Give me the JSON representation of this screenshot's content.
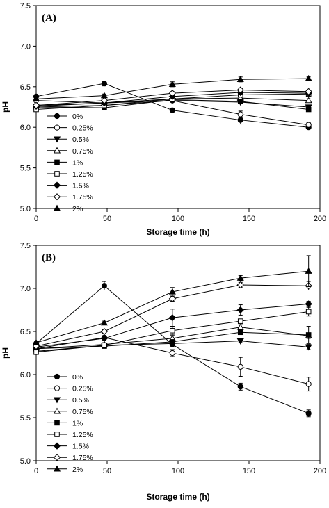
{
  "chart_data": [
    {
      "type": "line",
      "panel_label": "(A)",
      "xlabel": "Storage time (h)",
      "ylabel": "pH",
      "xlim": [
        0,
        200
      ],
      "ylim": [
        5.0,
        7.5
      ],
      "xticks": [
        0,
        50,
        100,
        150,
        200
      ],
      "yticks": [
        5.0,
        5.5,
        6.0,
        6.5,
        7.0,
        7.5
      ],
      "x": [
        0,
        48,
        96,
        144,
        192
      ],
      "legend_position": "bottom-left",
      "series": [
        {
          "name": "0%",
          "marker": "circle-filled",
          "values": [
            6.38,
            6.54,
            6.21,
            6.09,
            6.0
          ],
          "errors": [
            0.02,
            0.03,
            0.02,
            0.05,
            0.02
          ]
        },
        {
          "name": "0.25%",
          "marker": "circle-open",
          "values": [
            6.33,
            6.3,
            6.33,
            6.16,
            6.03
          ],
          "errors": [
            0.02,
            0.02,
            0.02,
            0.04,
            0.03
          ]
        },
        {
          "name": "0.5%",
          "marker": "triangle-down-filled",
          "values": [
            6.25,
            6.27,
            6.33,
            6.31,
            6.25
          ],
          "errors": [
            0.02,
            0.02,
            0.02,
            0.02,
            0.02
          ]
        },
        {
          "name": "0.75%",
          "marker": "triangle-up-open",
          "values": [
            6.27,
            6.3,
            6.35,
            6.36,
            6.33
          ],
          "errors": [
            0.02,
            0.02,
            0.02,
            0.02,
            0.02
          ]
        },
        {
          "name": "1%",
          "marker": "square-filled",
          "values": [
            6.25,
            6.24,
            6.34,
            6.32,
            6.22
          ],
          "errors": [
            0.02,
            0.02,
            0.02,
            0.02,
            0.02
          ]
        },
        {
          "name": "1.25%",
          "marker": "square-open",
          "values": [
            6.22,
            6.27,
            6.35,
            6.4,
            6.41
          ],
          "errors": [
            0.02,
            0.02,
            0.02,
            0.02,
            0.02
          ]
        },
        {
          "name": "1.5%",
          "marker": "diamond-filled",
          "values": [
            6.26,
            6.3,
            6.38,
            6.43,
            6.42
          ],
          "errors": [
            0.02,
            0.02,
            0.02,
            0.02,
            0.02
          ]
        },
        {
          "name": "1.75%",
          "marker": "diamond-open",
          "values": [
            6.27,
            6.33,
            6.42,
            6.46,
            6.44
          ],
          "errors": [
            0.02,
            0.02,
            0.02,
            0.02,
            0.02
          ]
        },
        {
          "name": "2%",
          "marker": "triangle-up-filled",
          "values": [
            6.35,
            6.39,
            6.53,
            6.59,
            6.6
          ],
          "errors": [
            0.02,
            0.02,
            0.03,
            0.03,
            0.02
          ]
        }
      ]
    },
    {
      "type": "line",
      "panel_label": "(B)",
      "xlabel": "Storage time (h)",
      "ylabel": "pH",
      "xlim": [
        0,
        200
      ],
      "ylim": [
        5.0,
        7.5
      ],
      "xticks": [
        0,
        50,
        100,
        150,
        200
      ],
      "yticks": [
        5.0,
        5.5,
        6.0,
        6.5,
        7.0,
        7.5
      ],
      "x": [
        0,
        48,
        96,
        144,
        192
      ],
      "legend_position": "bottom-left",
      "series": [
        {
          "name": "0%",
          "marker": "circle-filled",
          "values": [
            6.36,
            7.03,
            6.35,
            5.86,
            5.55
          ],
          "errors": [
            0.02,
            0.05,
            0.03,
            0.04,
            0.04
          ]
        },
        {
          "name": "0.25%",
          "marker": "circle-open",
          "values": [
            6.3,
            6.43,
            6.25,
            6.09,
            5.89
          ],
          "errors": [
            0.02,
            0.02,
            0.04,
            0.11,
            0.08
          ]
        },
        {
          "name": "0.5%",
          "marker": "triangle-down-filled",
          "values": [
            6.27,
            6.34,
            6.36,
            6.39,
            6.32
          ],
          "errors": [
            0.02,
            0.02,
            0.02,
            0.02,
            0.03
          ]
        },
        {
          "name": "0.75%",
          "marker": "triangle-up-open",
          "values": [
            6.3,
            6.35,
            6.42,
            6.55,
            6.45
          ],
          "errors": [
            0.02,
            0.02,
            0.03,
            0.03,
            0.03
          ]
        },
        {
          "name": "1%",
          "marker": "square-filled",
          "values": [
            6.3,
            6.33,
            6.38,
            6.49,
            6.46
          ],
          "errors": [
            0.02,
            0.02,
            0.02,
            0.02,
            0.1
          ]
        },
        {
          "name": "1.25%",
          "marker": "square-open",
          "values": [
            6.26,
            6.34,
            6.51,
            6.62,
            6.73
          ],
          "errors": [
            0.02,
            0.02,
            0.05,
            0.02,
            0.05
          ]
        },
        {
          "name": "1.5%",
          "marker": "diamond-filled",
          "values": [
            6.32,
            6.42,
            6.66,
            6.75,
            6.82
          ],
          "errors": [
            0.02,
            0.02,
            0.1,
            0.06,
            0.03
          ]
        },
        {
          "name": "1.75%",
          "marker": "diamond-open",
          "values": [
            6.33,
            6.5,
            6.88,
            7.04,
            7.03
          ],
          "errors": [
            0.02,
            0.02,
            0.03,
            0.03,
            0.05
          ]
        },
        {
          "name": "2%",
          "marker": "triangle-up-filled",
          "values": [
            6.37,
            6.6,
            6.96,
            7.12,
            7.2
          ],
          "errors": [
            0.02,
            0.02,
            0.05,
            0.03,
            0.18
          ]
        }
      ]
    }
  ]
}
